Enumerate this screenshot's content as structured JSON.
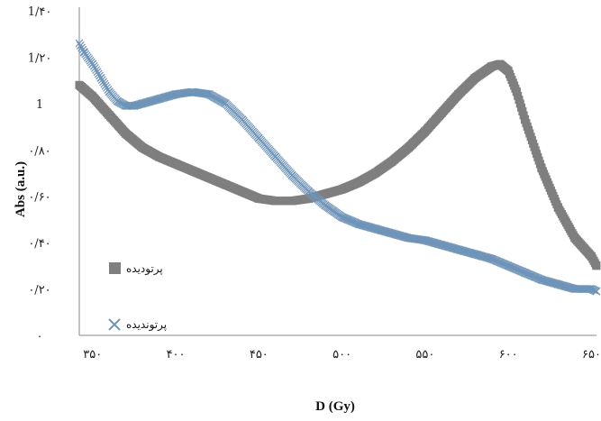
{
  "chart_data": {
    "type": "scatter",
    "xlabel": "D (Gy)",
    "ylabel": "Abs (a.u.)",
    "xlim": [
      342,
      653
    ],
    "ylim": [
      0,
      1.4
    ],
    "x_tick_values": [
      350,
      400,
      450,
      500,
      550,
      600,
      650
    ],
    "x_tick_labels": [
      "۳۵۰",
      "۴۰۰",
      "۴۵۰",
      "۵۰۰",
      "۵۵۰",
      "۶۰۰",
      "۶۵۰"
    ],
    "y_tick_values": [
      0,
      0.2,
      0.4,
      0.6,
      0.8,
      1.0,
      1.2,
      1.4
    ],
    "y_tick_labels": [
      "۰",
      "۰/۲۰",
      "۰/۴۰",
      "۰/۶۰",
      "۰/۸۰",
      "1",
      "1/۲۰",
      "1/۴۰"
    ],
    "grid": false,
    "legend_position": "left",
    "series": [
      {
        "name": "پرتودیده",
        "marker": "square",
        "color": "#7f7f7f",
        "x": [
          342,
          350,
          360,
          370,
          380,
          390,
          400,
          410,
          420,
          430,
          440,
          450,
          460,
          470,
          480,
          490,
          500,
          510,
          520,
          530,
          540,
          550,
          560,
          570,
          580,
          590,
          595,
          600,
          605,
          610,
          620,
          630,
          640,
          650,
          653
        ],
        "y": [
          1.08,
          1.03,
          0.95,
          0.87,
          0.81,
          0.77,
          0.74,
          0.71,
          0.68,
          0.65,
          0.62,
          0.59,
          0.58,
          0.58,
          0.59,
          0.61,
          0.63,
          0.66,
          0.7,
          0.75,
          0.81,
          0.88,
          0.96,
          1.04,
          1.11,
          1.16,
          1.17,
          1.14,
          1.05,
          0.93,
          0.72,
          0.55,
          0.42,
          0.34,
          0.3
        ]
      },
      {
        "name": "پرتونديده",
        "marker": "x",
        "color": "#6f94b8",
        "x": [
          342,
          345,
          350,
          355,
          360,
          365,
          370,
          375,
          380,
          390,
          400,
          410,
          420,
          430,
          440,
          450,
          460,
          470,
          480,
          490,
          500,
          510,
          520,
          530,
          540,
          550,
          560,
          570,
          580,
          590,
          600,
          610,
          620,
          630,
          640,
          650,
          653
        ],
        "y": [
          1.26,
          1.22,
          1.17,
          1.11,
          1.05,
          1.01,
          0.99,
          0.99,
          1.0,
          1.02,
          1.04,
          1.05,
          1.04,
          1.0,
          0.93,
          0.85,
          0.77,
          0.69,
          0.62,
          0.56,
          0.51,
          0.48,
          0.46,
          0.44,
          0.42,
          0.41,
          0.39,
          0.37,
          0.35,
          0.33,
          0.3,
          0.27,
          0.24,
          0.22,
          0.2,
          0.2,
          0.19
        ]
      }
    ]
  }
}
